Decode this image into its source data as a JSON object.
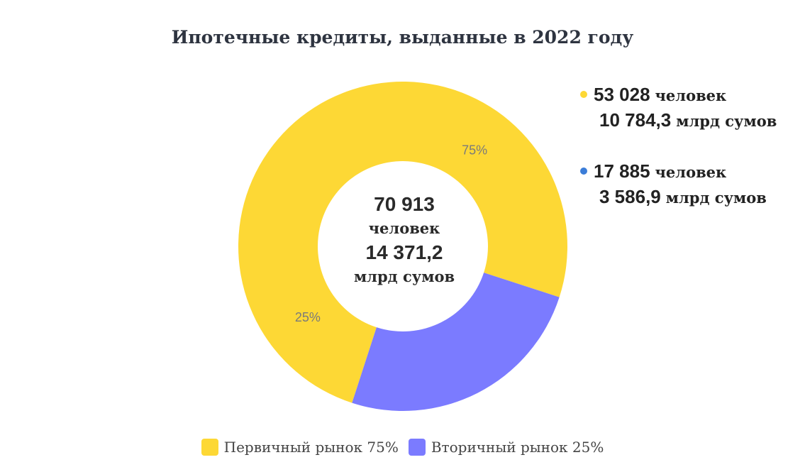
{
  "chart_data": {
    "type": "pie",
    "variant": "donut",
    "title": "Ипотечные кредиты, выданные в 2022 году",
    "categories": [
      "Первичный рынок",
      "Вторичный рынок"
    ],
    "values": [
      75,
      25
    ],
    "slice_labels": [
      "75%",
      "25%"
    ],
    "colors": [
      "#FDD835",
      "#7B7BFF"
    ],
    "legend": {
      "position": "bottom",
      "entries": [
        {
          "label": "Первичный рынок",
          "value": "75%"
        },
        {
          "label": "Вторичный рынок",
          "value": "25%"
        }
      ]
    },
    "center": {
      "people": "70 913",
      "people_unit": "человек",
      "amount": "14 371,2",
      "amount_unit": "млрд сумов"
    },
    "annotations": [
      {
        "color": "#FDD835",
        "people": "53 028",
        "people_unit": "человек",
        "amount": "10 784,3",
        "amount_unit": "млрд сумов"
      },
      {
        "color": "#3B7DD8",
        "people": "17 885",
        "people_unit": "человек",
        "amount": "3 586,9",
        "amount_unit": "млрд сумов"
      }
    ]
  }
}
